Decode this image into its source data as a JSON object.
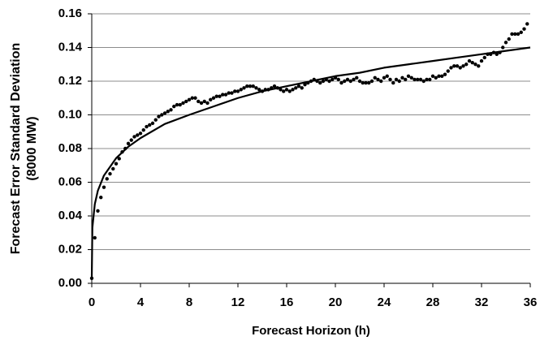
{
  "chart_data": {
    "type": "scatter",
    "xlabel": "Forecast Horizon (h)",
    "ylabel": [
      "Forecast Error Standard Deviation",
      "(8000 MW)"
    ],
    "xlim": [
      0,
      36
    ],
    "xticks": [
      0,
      4,
      8,
      12,
      16,
      20,
      24,
      28,
      32,
      36
    ],
    "ylim": [
      0,
      0.16
    ],
    "yticks": [
      {
        "value": 0,
        "label": "0.00"
      },
      {
        "value": 0.02,
        "label": "0.02"
      },
      {
        "value": 0.04,
        "label": "0.04"
      },
      {
        "value": 0.06,
        "label": "0.06"
      },
      {
        "value": 0.08,
        "label": "0.08"
      },
      {
        "value": 0.1,
        "label": "0.10"
      },
      {
        "value": 0.12,
        "label": "0.12"
      },
      {
        "value": 0.14,
        "label": "0.14"
      },
      {
        "value": 0.16,
        "label": "0.16"
      }
    ],
    "grid": true,
    "series": [
      {
        "type": "scatter",
        "color": "#000000",
        "x": [
          0,
          0.25,
          0.5,
          0.75,
          1,
          1.25,
          1.5,
          1.75,
          2,
          2.25,
          2.5,
          2.75,
          3,
          3.25,
          3.5,
          3.75,
          4,
          4.25,
          4.5,
          4.75,
          5,
          5.25,
          5.5,
          5.75,
          6,
          6.25,
          6.5,
          6.75,
          7,
          7.25,
          7.5,
          7.75,
          8,
          8.25,
          8.5,
          8.75,
          9,
          9.25,
          9.5,
          9.75,
          10,
          10.25,
          10.5,
          10.75,
          11,
          11.25,
          11.5,
          11.75,
          12,
          12.25,
          12.5,
          12.75,
          13,
          13.25,
          13.5,
          13.75,
          14,
          14.25,
          14.5,
          14.75,
          15,
          15.25,
          15.5,
          15.75,
          16,
          16.25,
          16.5,
          16.75,
          17,
          17.25,
          17.5,
          17.75,
          18,
          18.25,
          18.5,
          18.75,
          19,
          19.25,
          19.5,
          19.75,
          20,
          20.25,
          20.5,
          20.75,
          21,
          21.25,
          21.5,
          21.75,
          22,
          22.25,
          22.5,
          22.75,
          23,
          23.25,
          23.5,
          23.75,
          24,
          24.25,
          24.5,
          24.75,
          25,
          25.25,
          25.5,
          25.75,
          26,
          26.25,
          26.5,
          26.75,
          27,
          27.25,
          27.5,
          27.75,
          28,
          28.25,
          28.5,
          28.75,
          29,
          29.25,
          29.5,
          29.75,
          30,
          30.25,
          30.5,
          30.75,
          31,
          31.25,
          31.5,
          31.75,
          32,
          32.25,
          32.5,
          32.75,
          33,
          33.25,
          33.5,
          33.75,
          34,
          34.25,
          34.5,
          34.75,
          35,
          35.25,
          35.5,
          35.75
        ],
        "values": [
          0.003,
          0.027,
          0.043,
          0.051,
          0.057,
          0.062,
          0.065,
          0.068,
          0.071,
          0.074,
          0.078,
          0.08,
          0.083,
          0.085,
          0.087,
          0.088,
          0.089,
          0.091,
          0.093,
          0.094,
          0.095,
          0.097,
          0.099,
          0.1,
          0.101,
          0.102,
          0.103,
          0.105,
          0.106,
          0.106,
          0.107,
          0.108,
          0.109,
          0.11,
          0.11,
          0.108,
          0.107,
          0.108,
          0.107,
          0.109,
          0.11,
          0.111,
          0.111,
          0.112,
          0.112,
          0.113,
          0.113,
          0.114,
          0.114,
          0.115,
          0.116,
          0.117,
          0.117,
          0.117,
          0.116,
          0.115,
          0.114,
          0.115,
          0.115,
          0.116,
          0.117,
          0.116,
          0.115,
          0.114,
          0.115,
          0.114,
          0.115,
          0.116,
          0.117,
          0.116,
          0.118,
          0.119,
          0.12,
          0.121,
          0.12,
          0.119,
          0.12,
          0.121,
          0.12,
          0.121,
          0.122,
          0.121,
          0.119,
          0.12,
          0.121,
          0.12,
          0.121,
          0.122,
          0.12,
          0.119,
          0.119,
          0.119,
          0.12,
          0.122,
          0.121,
          0.12,
          0.122,
          0.123,
          0.121,
          0.119,
          0.121,
          0.12,
          0.122,
          0.121,
          0.123,
          0.122,
          0.121,
          0.121,
          0.121,
          0.12,
          0.121,
          0.121,
          0.123,
          0.122,
          0.123,
          0.123,
          0.124,
          0.126,
          0.128,
          0.129,
          0.129,
          0.128,
          0.129,
          0.13,
          0.132,
          0.131,
          0.13,
          0.129,
          0.132,
          0.134,
          0.136,
          0.136,
          0.137,
          0.136,
          0.137,
          0.14,
          0.143,
          0.145,
          0.148,
          0.148,
          0.148,
          0.149,
          0.151,
          0.154
        ]
      },
      {
        "type": "line",
        "color": "#000000",
        "x": [
          0,
          0.05,
          0.25,
          0.5,
          1,
          2,
          3,
          4,
          6,
          8,
          10,
          12,
          14,
          16,
          18,
          20,
          22,
          24,
          26,
          28,
          30,
          32,
          34,
          36
        ],
        "values": [
          0.003,
          0.033,
          0.047,
          0.055,
          0.064,
          0.0743,
          0.0811,
          0.0862,
          0.0946,
          0.1,
          0.105,
          0.11,
          0.114,
          0.117,
          0.12,
          0.123,
          0.125,
          0.128,
          0.13,
          0.132,
          0.134,
          0.136,
          0.138,
          0.14
        ]
      }
    ]
  }
}
